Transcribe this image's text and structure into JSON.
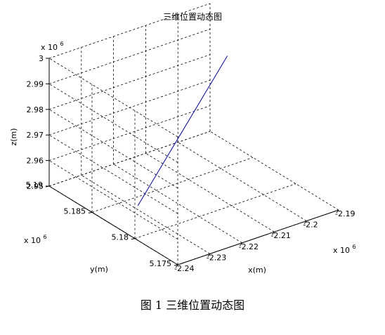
{
  "caption": "图 1 三维位置动态图",
  "chart_data": {
    "type": "line3d",
    "title": "三维位置动态图",
    "xlabel": "x(m)",
    "ylabel": "y(m)",
    "zlabel": "z(m)",
    "x_multiplier_label": "x 10",
    "y_multiplier_label": "x 10",
    "z_multiplier_label": "x 10",
    "multiplier_exponent": "6",
    "xlim": [
      -2.24,
      -2.19
    ],
    "ylim": [
      5.175,
      5.19
    ],
    "zlim": [
      2.95,
      3.0
    ],
    "x_ticks": [
      "-2.24",
      "-2.23",
      "-2.22",
      "-2.21",
      "-2.2",
      "-2.19"
    ],
    "x_tick_values": [
      -2.24,
      -2.23,
      -2.22,
      -2.21,
      -2.2,
      -2.19
    ],
    "y_ticks": [
      "5.175",
      "5.18",
      "5.185",
      "5.19"
    ],
    "y_tick_values": [
      5.175,
      5.18,
      5.185,
      5.19
    ],
    "z_ticks": [
      "2.95",
      "2.96",
      "2.97",
      "2.98",
      "2.99",
      "3"
    ],
    "z_tick_values": [
      2.95,
      2.96,
      2.97,
      2.98,
      2.99,
      3.0
    ],
    "grid": true,
    "series": [
      {
        "color": "#0000cc",
        "x": [
          -2.2359,
          -2.1982
        ],
        "y": [
          5.1812,
          5.1849
        ],
        "z": [
          2.9586,
          2.9935
        ]
      }
    ]
  }
}
